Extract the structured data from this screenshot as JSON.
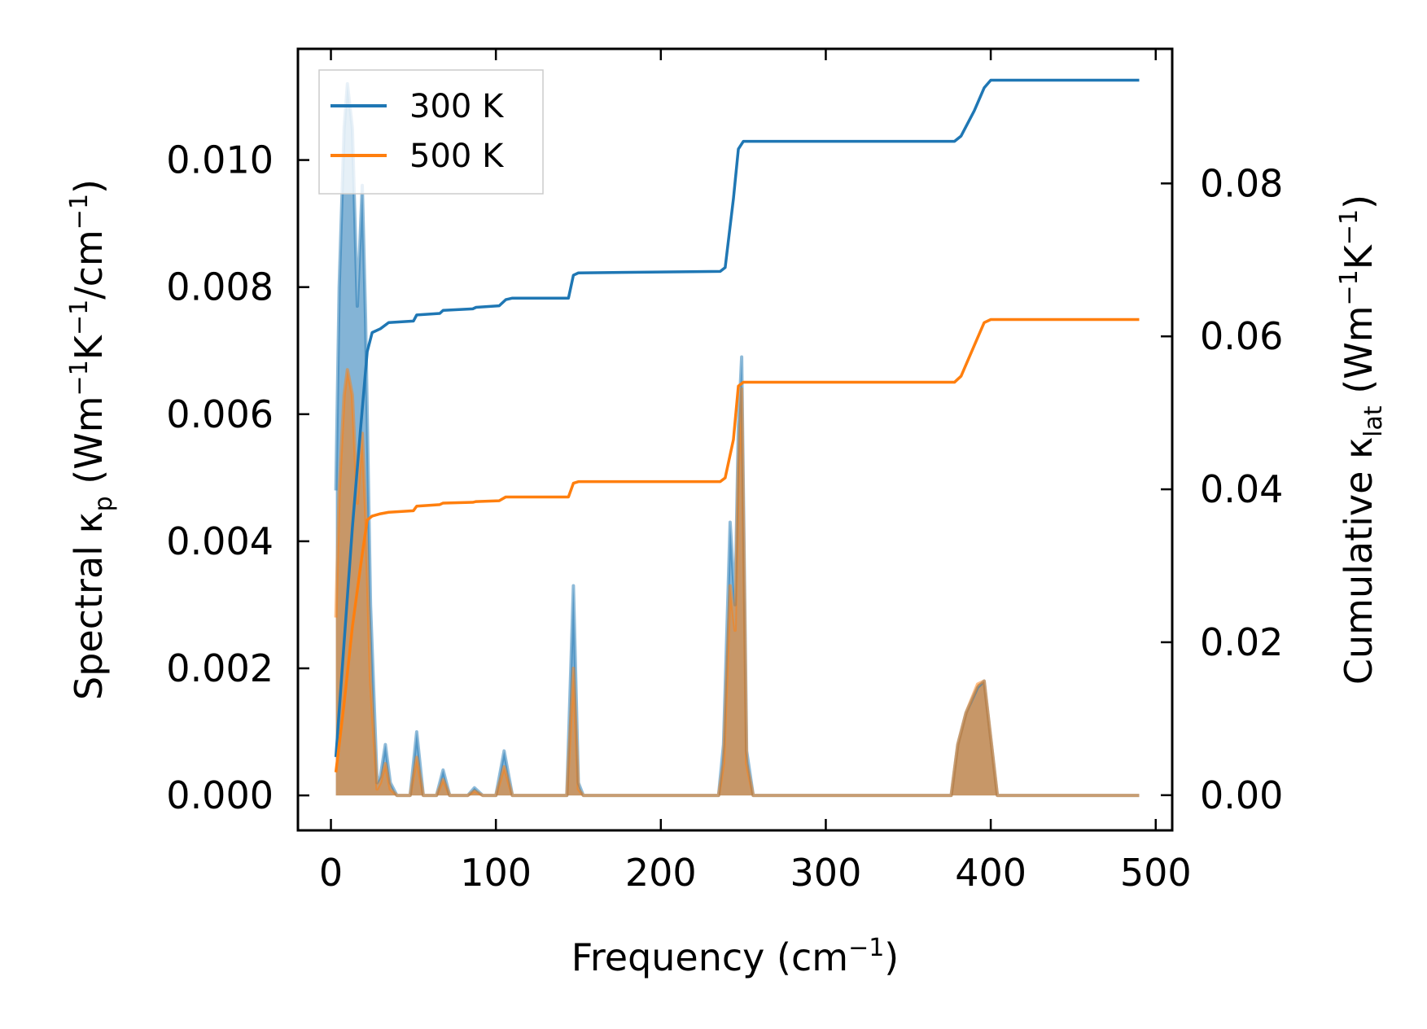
{
  "chart_data": {
    "type": "line",
    "title": "",
    "xlabel": "Frequency (cm",
    "xlabel_sup": "−1",
    "xlabel_tail": ")",
    "ylabel_left_prefix": "Spectral κ",
    "ylabel_left_sub": "p",
    "ylabel_left_units": " (Wm",
    "ylabel_left_sup1": "−1",
    "ylabel_left_mid": "K",
    "ylabel_left_sup2": "−1",
    "ylabel_left_mid2": "/cm",
    "ylabel_left_sup3": "−1",
    "ylabel_left_tail": ")",
    "ylabel_right_prefix": "Cumulative κ",
    "ylabel_right_sub": "lat",
    "ylabel_right_units": " (Wm",
    "ylabel_right_sup1": "−1",
    "ylabel_right_mid": "K",
    "ylabel_right_sup2": "−1",
    "ylabel_right_tail": ")",
    "xlim": [
      -20,
      510
    ],
    "ylim_left": [
      -0.00055,
      0.01175
    ],
    "ylim_right": [
      -0.0046,
      0.0976
    ],
    "xticks": [
      0,
      100,
      200,
      300,
      400,
      500
    ],
    "yticks_left": [
      0.0,
      0.002,
      0.004,
      0.006,
      0.008,
      0.01
    ],
    "yticks_right": [
      0.0,
      0.02,
      0.04,
      0.06,
      0.08
    ],
    "xtick_labels": [
      "0",
      "100",
      "200",
      "300",
      "400",
      "500"
    ],
    "ytick_labels_left": [
      "0.000",
      "0.002",
      "0.004",
      "0.006",
      "0.008",
      "0.010"
    ],
    "ytick_labels_right": [
      "0.00",
      "0.02",
      "0.04",
      "0.06",
      "0.08"
    ],
    "legend": {
      "position": "top-left",
      "entries": [
        "300 K",
        "500 K"
      ]
    },
    "series": [
      {
        "name": "300 K",
        "color": "#1f77b4",
        "spectral": [
          [
            3,
            0.0048
          ],
          [
            5,
            0.008
          ],
          [
            8,
            0.0105
          ],
          [
            10,
            0.0112
          ],
          [
            13,
            0.0105
          ],
          [
            16,
            0.0077
          ],
          [
            19,
            0.0096
          ],
          [
            21,
            0.0075
          ],
          [
            24,
            0.003
          ],
          [
            28,
            0.0002
          ],
          [
            30,
            0.0003
          ],
          [
            33,
            0.0008
          ],
          [
            36,
            0.0002
          ],
          [
            40,
            0.0
          ],
          [
            48,
            0.0
          ],
          [
            52,
            0.001
          ],
          [
            56,
            0.0
          ],
          [
            64,
            0.0
          ],
          [
            68,
            0.0004
          ],
          [
            72,
            0.0
          ],
          [
            83,
            0.0
          ],
          [
            87,
            0.00012
          ],
          [
            92,
            0.0
          ],
          [
            100,
            0.0
          ],
          [
            105,
            0.0007
          ],
          [
            110,
            0.0
          ],
          [
            143,
            0.0
          ],
          [
            147,
            0.0033
          ],
          [
            150,
            0.0002
          ],
          [
            153,
            0.0
          ],
          [
            235,
            0.0
          ],
          [
            238,
            0.0008
          ],
          [
            242,
            0.0043
          ],
          [
            245,
            0.003
          ],
          [
            247,
            0.0058
          ],
          [
            249,
            0.0069
          ],
          [
            252,
            0.0007
          ],
          [
            256,
            0.0
          ],
          [
            376,
            0.0
          ],
          [
            380,
            0.0008
          ],
          [
            385,
            0.0013
          ],
          [
            392,
            0.0017
          ],
          [
            396,
            0.0018
          ],
          [
            400,
            0.0009
          ],
          [
            404,
            0.0
          ],
          [
            490,
            0.0
          ]
        ],
        "cumulative": [
          [
            3,
            0.005
          ],
          [
            8,
            0.02
          ],
          [
            13,
            0.035
          ],
          [
            18,
            0.048
          ],
          [
            22,
            0.058
          ],
          [
            25,
            0.0605
          ],
          [
            30,
            0.061
          ],
          [
            35,
            0.0618
          ],
          [
            50,
            0.062
          ],
          [
            52,
            0.0628
          ],
          [
            66,
            0.063
          ],
          [
            68,
            0.0634
          ],
          [
            86,
            0.0636
          ],
          [
            88,
            0.0638
          ],
          [
            102,
            0.064
          ],
          [
            106,
            0.0648
          ],
          [
            110,
            0.065
          ],
          [
            144,
            0.065
          ],
          [
            147,
            0.068
          ],
          [
            150,
            0.0683
          ],
          [
            236,
            0.0685
          ],
          [
            239,
            0.069
          ],
          [
            244,
            0.078
          ],
          [
            247,
            0.0845
          ],
          [
            250,
            0.0855
          ],
          [
            378,
            0.0855
          ],
          [
            382,
            0.0862
          ],
          [
            390,
            0.0895
          ],
          [
            396,
            0.0925
          ],
          [
            400,
            0.0935
          ],
          [
            490,
            0.0935
          ]
        ]
      },
      {
        "name": "500 K",
        "color": "#ff7f0e",
        "spectral": [
          [
            3,
            0.0028
          ],
          [
            5,
            0.0048
          ],
          [
            8,
            0.0063
          ],
          [
            10,
            0.0067
          ],
          [
            13,
            0.0063
          ],
          [
            16,
            0.0046
          ],
          [
            19,
            0.0057
          ],
          [
            21,
            0.0045
          ],
          [
            24,
            0.0018
          ],
          [
            28,
            0.0001
          ],
          [
            30,
            0.0002
          ],
          [
            33,
            0.0005
          ],
          [
            36,
            0.0001
          ],
          [
            40,
            0.0
          ],
          [
            48,
            0.0
          ],
          [
            52,
            0.0006
          ],
          [
            56,
            0.0
          ],
          [
            64,
            0.0
          ],
          [
            68,
            0.00025
          ],
          [
            72,
            0.0
          ],
          [
            83,
            0.0
          ],
          [
            87,
            7e-05
          ],
          [
            92,
            0.0
          ],
          [
            100,
            0.0
          ],
          [
            105,
            0.00045
          ],
          [
            110,
            0.0
          ],
          [
            143,
            0.0
          ],
          [
            147,
            0.002
          ],
          [
            150,
            0.0001
          ],
          [
            153,
            0.0
          ],
          [
            235,
            0.0
          ],
          [
            238,
            0.0005
          ],
          [
            242,
            0.0033
          ],
          [
            245,
            0.0026
          ],
          [
            247,
            0.0052
          ],
          [
            249,
            0.0064
          ],
          [
            252,
            0.0005
          ],
          [
            256,
            0.0
          ],
          [
            376,
            0.0
          ],
          [
            380,
            0.0008
          ],
          [
            385,
            0.0013
          ],
          [
            392,
            0.00175
          ],
          [
            396,
            0.0018
          ],
          [
            400,
            0.0009
          ],
          [
            404,
            0.0
          ],
          [
            490,
            0.0
          ]
        ],
        "cumulative": [
          [
            3,
            0.003
          ],
          [
            8,
            0.012
          ],
          [
            13,
            0.022
          ],
          [
            18,
            0.03
          ],
          [
            22,
            0.036
          ],
          [
            25,
            0.0365
          ],
          [
            30,
            0.0368
          ],
          [
            35,
            0.037
          ],
          [
            50,
            0.0372
          ],
          [
            52,
            0.0378
          ],
          [
            66,
            0.038
          ],
          [
            68,
            0.0382
          ],
          [
            86,
            0.0383
          ],
          [
            88,
            0.0384
          ],
          [
            102,
            0.0385
          ],
          [
            106,
            0.039
          ],
          [
            110,
            0.039
          ],
          [
            144,
            0.039
          ],
          [
            147,
            0.0408
          ],
          [
            150,
            0.041
          ],
          [
            236,
            0.041
          ],
          [
            239,
            0.0415
          ],
          [
            244,
            0.0465
          ],
          [
            247,
            0.0535
          ],
          [
            250,
            0.054
          ],
          [
            378,
            0.054
          ],
          [
            382,
            0.0548
          ],
          [
            390,
            0.0588
          ],
          [
            396,
            0.0618
          ],
          [
            400,
            0.0622
          ],
          [
            490,
            0.0622
          ]
        ]
      }
    ]
  }
}
